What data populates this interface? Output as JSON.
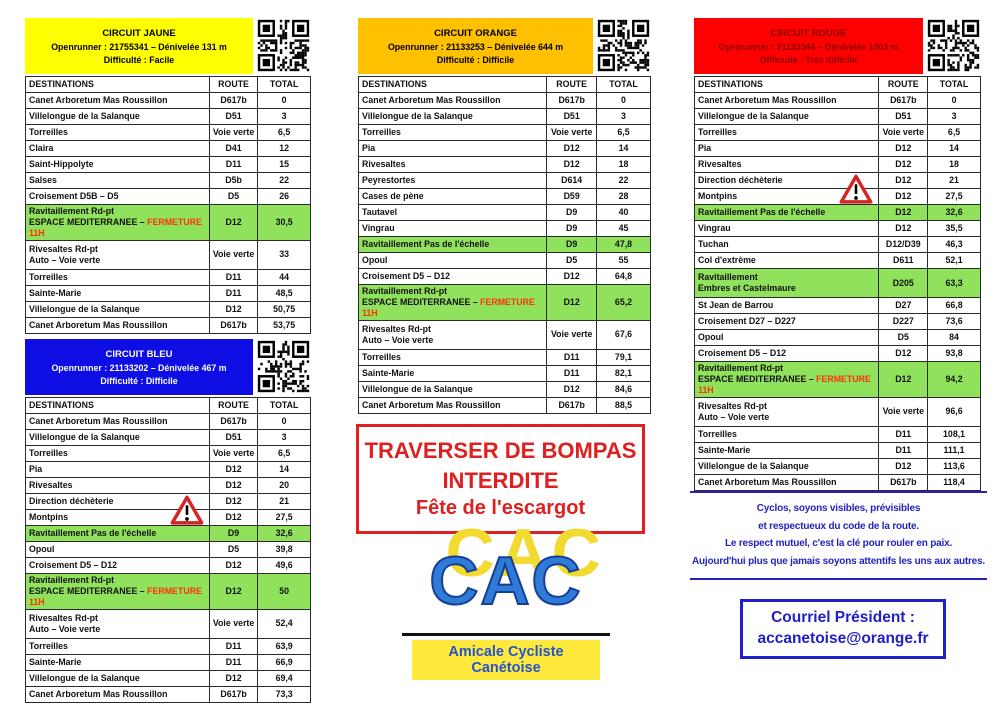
{
  "colors": {
    "green_row": "#90E15C",
    "fermeture_red": "#FF3300",
    "notice_red": "#DF2020",
    "info_blue": "#2323BE",
    "logo_blue": "#2F7CD6",
    "logo_yellow": "#F2DA30"
  },
  "circuits": [
    {
      "name": "jaune",
      "title": "CIRCUIT JAUNE",
      "subtitle": "Openrunner : 21755341 – Dénivelée 131 m",
      "difficulty": "Difficulté : Facile",
      "banner_bg": "#FFFF00",
      "banner_fg": "#000000",
      "columns": [
        "DESTINATIONS",
        "ROUTE",
        "TOTAL"
      ],
      "rows": [
        {
          "d1": "Canet Arboretum Mas Roussillon",
          "route": "D617b",
          "total": "0"
        },
        {
          "d1": "Villelongue de la Salanque",
          "route": "D51",
          "total": "3"
        },
        {
          "d1": "Torreilles",
          "route": "Voie verte",
          "total": "6,5"
        },
        {
          "d1": "Claira",
          "route": "D41",
          "total": "12"
        },
        {
          "d1": "Saint-Hippolyte",
          "route": "D11",
          "total": "15"
        },
        {
          "d1": "Salses",
          "route": "D5b",
          "total": "22"
        },
        {
          "d1": "Croisement D5B – D5",
          "route": "D5",
          "total": "26"
        },
        {
          "d1": "Ravitaillement Rd-pt",
          "d2": "ESPACE MEDITERRANEE – ",
          "d2r": "FERMETURE 11H",
          "route": "D12",
          "total": "30,5",
          "green": true
        },
        {
          "d1": "Rivesaltes Rd-pt",
          "d2": "Auto – Voie verte",
          "route": "Voie verte",
          "total": "33"
        },
        {
          "d1": "Torreilles",
          "route": "D11",
          "total": "44"
        },
        {
          "d1": "Sainte-Marie",
          "route": "D11",
          "total": "48,5"
        },
        {
          "d1": "Villelongue de la Salanque",
          "route": "D12",
          "total": "50,75"
        },
        {
          "d1": "Canet Arboretum Mas Roussillon",
          "route": "D617b",
          "total": "53,75"
        }
      ]
    },
    {
      "name": "orange",
      "title": "CIRCUIT ORANGE",
      "subtitle": "Openrunner : 21133253 – Dénivelée 644 m",
      "difficulty": "Difficulté : Difficile",
      "banner_bg": "#FFC000",
      "banner_fg": "#000000",
      "columns": [
        "DESTINATIONS",
        "ROUTE",
        "TOTAL"
      ],
      "rows": [
        {
          "d1": "Canet Arboretum Mas Roussillon",
          "route": "D617b",
          "total": "0"
        },
        {
          "d1": "Villelongue de la Salanque",
          "route": "D51",
          "total": "3"
        },
        {
          "d1": "Torreilles",
          "route": "Voie verte",
          "total": "6,5"
        },
        {
          "d1": "Pia",
          "route": "D12",
          "total": "14"
        },
        {
          "d1": "Rivesaltes",
          "route": "D12",
          "total": "18"
        },
        {
          "d1": "Peyrestortes",
          "route": "D614",
          "total": "22"
        },
        {
          "d1": "Cases de pène",
          "route": "D59",
          "total": "28"
        },
        {
          "d1": "Tautavel",
          "route": "D9",
          "total": "40"
        },
        {
          "d1": "Vingrau",
          "route": "D9",
          "total": "45"
        },
        {
          "d1": "Ravitaillement Pas de l'échelle",
          "route": "D9",
          "total": "47,8",
          "green": true
        },
        {
          "d1": "Opoul",
          "route": "D5",
          "total": "55"
        },
        {
          "d1": "Croisement D5 – D12",
          "route": "D12",
          "total": "64,8"
        },
        {
          "d1": "Ravitaillement Rd-pt",
          "d2": "ESPACE MEDITERRANEE – ",
          "d2r": "FERMETURE 11H",
          "route": "D12",
          "total": "65,2",
          "green": true
        },
        {
          "d1": "Rivesaltes Rd-pt",
          "d2": "Auto – Voie verte",
          "route": "Voie verte",
          "total": "67,6"
        },
        {
          "d1": "Torreilles",
          "route": "D11",
          "total": "79,1"
        },
        {
          "d1": "Sainte-Marie",
          "route": "D11",
          "total": "82,1"
        },
        {
          "d1": "Villelongue de la Salanque",
          "route": "D12",
          "total": "84,6"
        },
        {
          "d1": "Canet Arboretum Mas Roussillon",
          "route": "D617b",
          "total": "88,5"
        }
      ]
    },
    {
      "name": "bleu",
      "title": "CIRCUIT BLEU",
      "subtitle": "Openrunner : 21133202 – Dénivelée 467 m",
      "difficulty": "Difficulté : Difficile",
      "banner_bg": "#0D0DE4",
      "banner_fg": "#FFFFFF",
      "columns": [
        "DESTINATIONS",
        "ROUTE",
        "TOTAL"
      ],
      "rows": [
        {
          "d1": "Canet Arboretum Mas Roussillon",
          "route": "D617b",
          "total": "0"
        },
        {
          "d1": "Villelongue de la Salanque",
          "route": "D51",
          "total": "3"
        },
        {
          "d1": "Torreilles",
          "route": "Voie verte",
          "total": "6,5"
        },
        {
          "d1": "Pia",
          "route": "D12",
          "total": "14"
        },
        {
          "d1": "Rivesaltes",
          "route": "D12",
          "total": "20"
        },
        {
          "d1": "Direction déchèterie",
          "route": "D12",
          "total": "21",
          "warning": true
        },
        {
          "d1": "Montpins",
          "route": "D12",
          "total": "27,5"
        },
        {
          "d1": "Ravitaillement Pas de l'échelle",
          "route": "D9",
          "total": "32,6",
          "green": true
        },
        {
          "d1": "Opoul",
          "route": "D5",
          "total": "39,8"
        },
        {
          "d1": "Croisement D5 – D12",
          "route": "D12",
          "total": "49,6"
        },
        {
          "d1": "Ravitaillement Rd-pt",
          "d2": "ESPACE MEDITERRANEE – ",
          "d2r": "FERMETURE 11H",
          "route": "D12",
          "total": "50",
          "green": true
        },
        {
          "d1": "Rivesaltes Rd-pt",
          "d2": "Auto – Voie verte",
          "route": "Voie verte",
          "total": "52,4"
        },
        {
          "d1": "Torreilles",
          "route": "D11",
          "total": "63,9"
        },
        {
          "d1": "Sainte-Marie",
          "route": "D11",
          "total": "66,9"
        },
        {
          "d1": "Villelongue de la Salanque",
          "route": "D12",
          "total": "69,4"
        },
        {
          "d1": "Canet Arboretum Mas Roussillon",
          "route": "D617b",
          "total": "73,3"
        }
      ]
    },
    {
      "name": "rouge",
      "title": "CIRCUIT ROUGE",
      "subtitle": "Openrunner : 21133044 – Dénivelée 1003 m",
      "difficulty": "Difficulté : Très difficile",
      "banner_bg": "#FF0000",
      "banner_fg": "#8B0000",
      "columns": [
        "DESTINATIONS",
        "ROUTE",
        "TOTAL"
      ],
      "rows": [
        {
          "d1": "Canet Arboretum Mas Roussillon",
          "route": "D617b",
          "total": "0"
        },
        {
          "d1": "Villelongue de la Salanque",
          "route": "D51",
          "total": "3"
        },
        {
          "d1": "Torreilles",
          "route": "Voie verte",
          "total": "6,5"
        },
        {
          "d1": "Pia",
          "route": "D12",
          "total": "14"
        },
        {
          "d1": "Rivesaltes",
          "route": "D12",
          "total": "18"
        },
        {
          "d1": "Direction déchèterie",
          "route": "D12",
          "total": "21",
          "warning": true
        },
        {
          "d1": "Montpins",
          "route": "D12",
          "total": "27,5"
        },
        {
          "d1": "Ravitaillement Pas de l'échelle",
          "route": "D12",
          "total": "32,6",
          "green": true
        },
        {
          "d1": "Vingrau",
          "route": "D12",
          "total": "35,5"
        },
        {
          "d1": "Tuchan",
          "route": "D12/D39",
          "total": "46,3"
        },
        {
          "d1": "Col d'extrème",
          "route": "D611",
          "total": "52,1"
        },
        {
          "d1": "Ravitaillement",
          "d2": "Embres et Castelmaure",
          "route": "D205",
          "total": "63,3",
          "green": true
        },
        {
          "d1": "St Jean de Barrou",
          "route": "D27",
          "total": "66,8"
        },
        {
          "d1": "Croisement D27 – D227",
          "route": "D227",
          "total": "73,6"
        },
        {
          "d1": "Opoul",
          "route": "D5",
          "total": "84"
        },
        {
          "d1": "Croisement D5 – D12",
          "route": "D12",
          "total": "93,8"
        },
        {
          "d1": "Ravitaillement Rd-pt",
          "d2": "ESPACE MEDITERRANEE – ",
          "d2r": "FERMETURE 11H",
          "route": "D12",
          "total": "94,2",
          "green": true
        },
        {
          "d1": "Rivesaltes Rd-pt",
          "d2": "Auto – Voie verte",
          "route": "Voie verte",
          "total": "96,6"
        },
        {
          "d1": "Torreilles",
          "route": "D11",
          "total": "108,1"
        },
        {
          "d1": "Sainte-Marie",
          "route": "D11",
          "total": "111,1"
        },
        {
          "d1": "Villelongue de la Salanque",
          "route": "D12",
          "total": "113,6"
        },
        {
          "d1": "Canet Arboretum Mas Roussillon",
          "route": "D617b",
          "total": "118,4"
        }
      ]
    }
  ],
  "notices": {
    "bompas": {
      "lines": [
        "TRAVERSER DE BOMPAS",
        "INTERDITE",
        "Fête de l'escargot"
      ]
    },
    "safety": {
      "lines": [
        "Cyclos, soyons visibles, prévisibles",
        "et respectueux du code de la route.",
        "Le respect mutuel, c'est la clé pour rouler en paix.",
        "Aujourd'hui plus que jamais soyons attentifs les uns aux autres."
      ]
    },
    "courriel": {
      "label": "Courriel Président  :",
      "email": "accanetoise@orange.fr"
    }
  },
  "logo": {
    "acronym": "CAC",
    "name": "Amicale Cycliste Canétoise"
  },
  "icons": {
    "warning": "warning-triangle-icon",
    "qr": "qr-code"
  }
}
